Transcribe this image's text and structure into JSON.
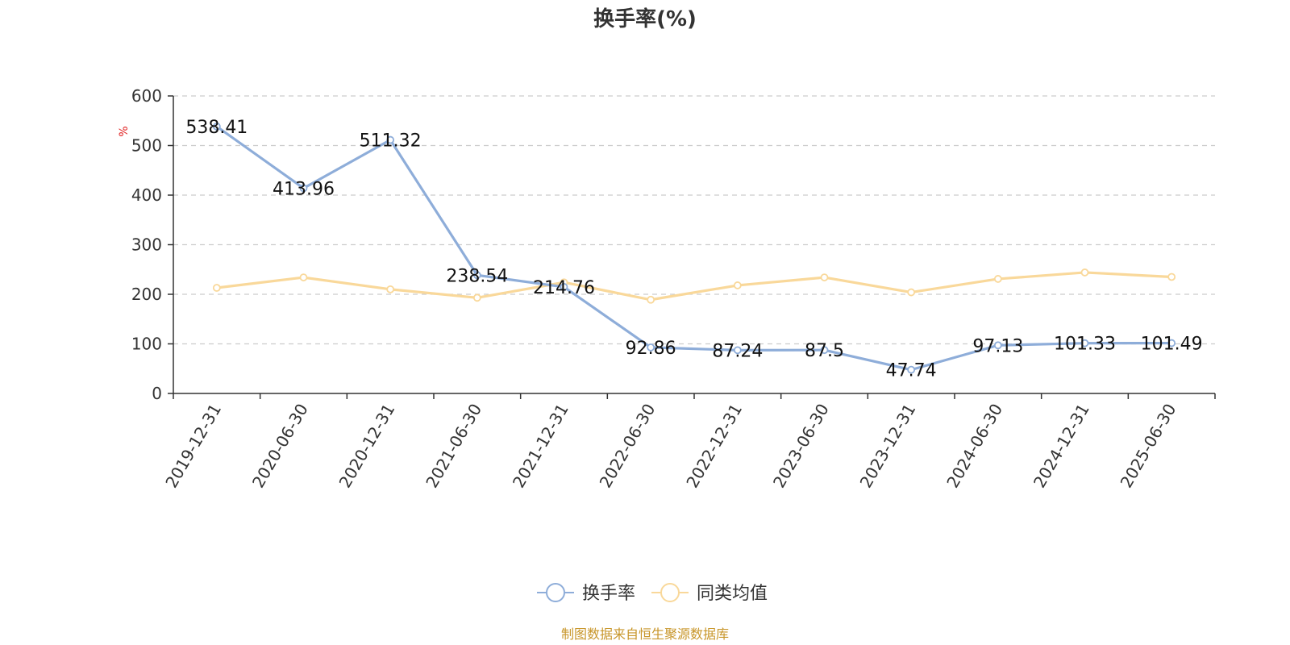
{
  "chart_data": {
    "type": "line",
    "title": "换手率(%)",
    "ylabel": "%",
    "ylim": [
      0,
      600
    ],
    "yticks": [
      0,
      100,
      200,
      300,
      400,
      500,
      600
    ],
    "grid": true,
    "legend_position": "bottom",
    "categories": [
      "2019-12-31",
      "2020-06-30",
      "2020-12-31",
      "2021-06-30",
      "2021-12-31",
      "2022-06-30",
      "2022-12-31",
      "2023-06-30",
      "2023-12-31",
      "2024-06-30",
      "2024-12-31",
      "2025-06-30"
    ],
    "series": [
      {
        "name": "换手率",
        "color": "#8eadd9",
        "values": [
          538.41,
          413.96,
          511.32,
          238.54,
          214.76,
          92.86,
          87.24,
          87.5,
          47.74,
          97.13,
          101.33,
          101.49
        ],
        "labels": [
          "538.41",
          "413.96",
          "511.32",
          "238.54",
          "214.76",
          "92.86",
          "87.24",
          "87.5",
          "47.74",
          "97.13",
          "101.33",
          "101.49"
        ]
      },
      {
        "name": "同类均值",
        "color": "#f9d89a",
        "values": [
          213,
          234,
          210,
          193,
          224,
          189,
          218,
          234,
          204,
          231,
          244,
          235
        ]
      }
    ],
    "source": "制图数据来自恒生聚源数据库"
  }
}
